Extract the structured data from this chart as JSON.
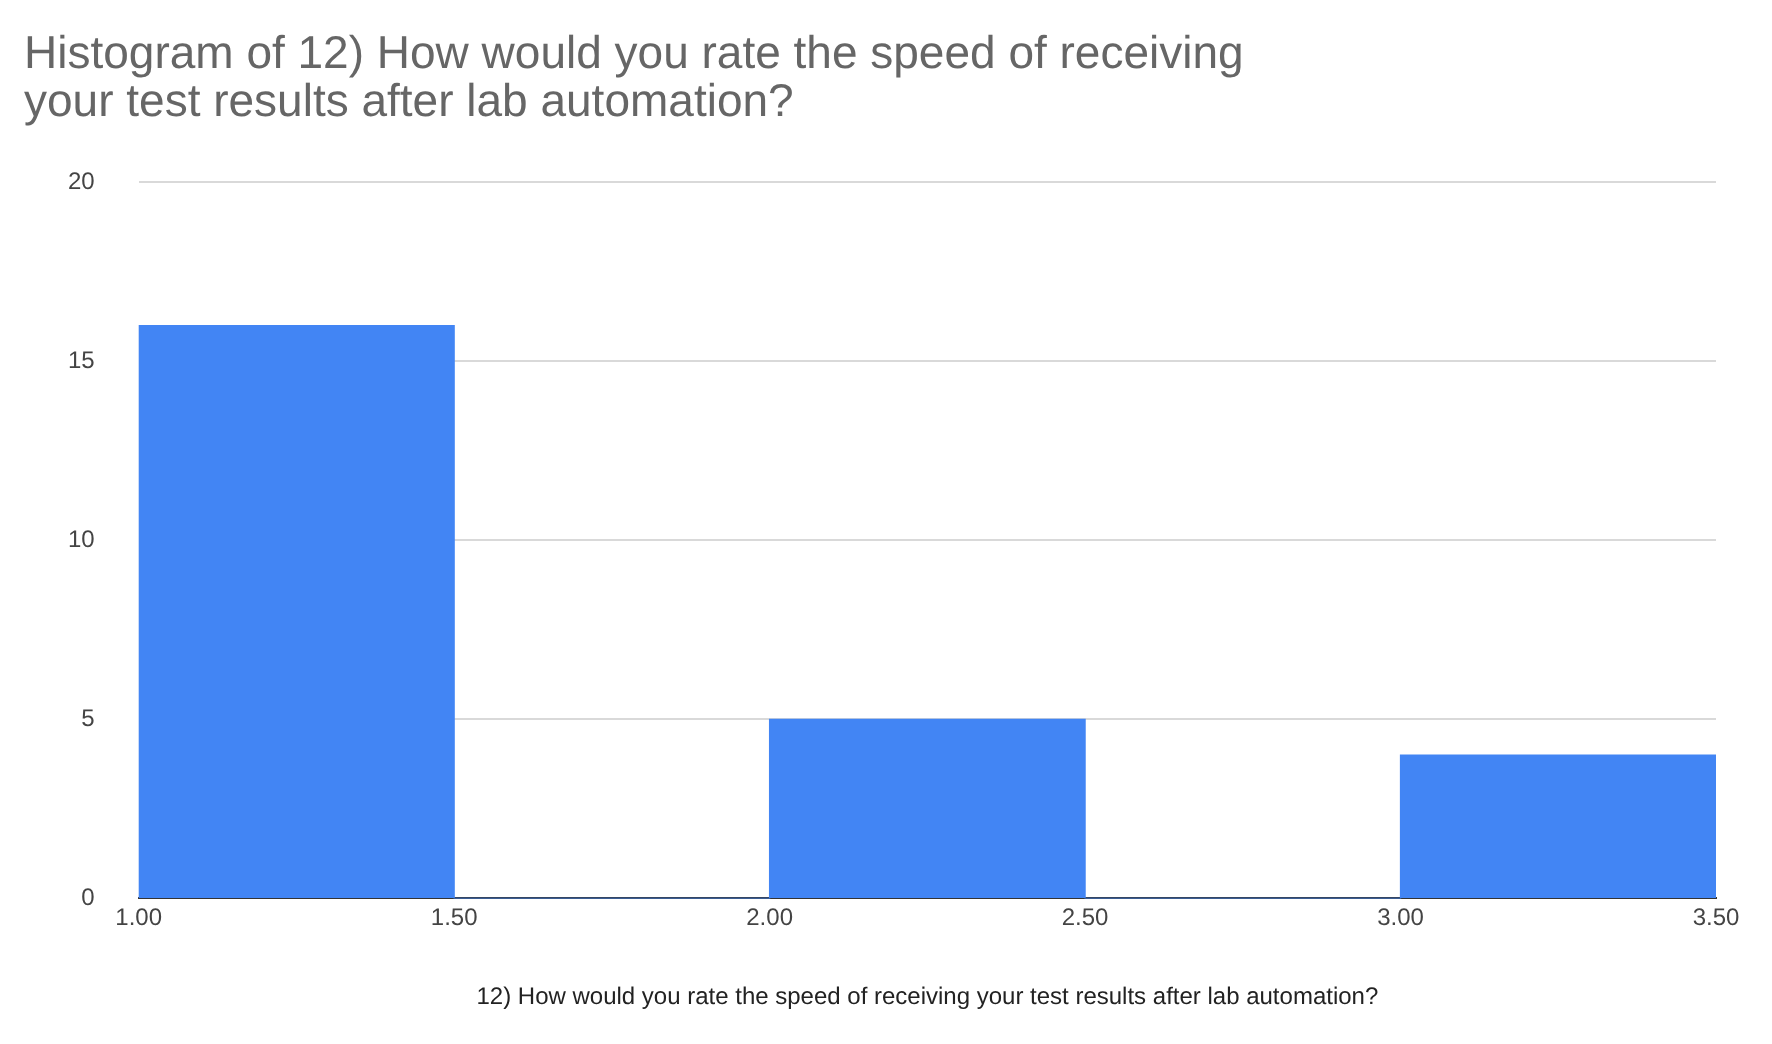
{
  "chart_data": {
    "type": "histogram",
    "title": "Histogram of 12) How would you rate the speed of receiving your test results after lab automation?",
    "xlabel": "12) How would you rate the speed of receiving your test results after lab automation?",
    "bins": [
      1,
      1.5,
      2,
      2.5,
      3,
      3.5
    ],
    "values": [
      16,
      0,
      5,
      0,
      4
    ],
    "color": "#4285f4",
    "xlim": [
      1,
      3.5
    ],
    "xticks": [
      {
        "value": 1,
        "label": "1.00"
      },
      {
        "value": 1.5,
        "label": "1.50"
      },
      {
        "value": 2,
        "label": "2.00"
      },
      {
        "value": 2.5,
        "label": "2.50"
      },
      {
        "value": 3,
        "label": "3.00"
      },
      {
        "value": 3.5,
        "label": "3.50"
      }
    ],
    "ylim": [
      0,
      20
    ],
    "yticks": [
      0,
      5,
      10,
      15,
      20
    ],
    "grid": "y",
    "legend": false
  }
}
